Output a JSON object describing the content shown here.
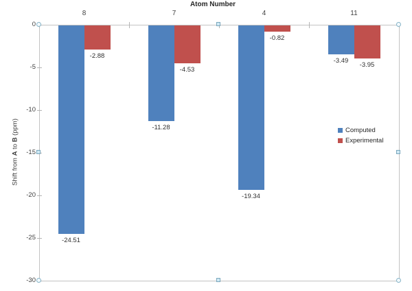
{
  "chart_data": {
    "type": "bar",
    "title": "Atom Number",
    "categories": [
      "8",
      "7",
      "4",
      "11"
    ],
    "series": [
      {
        "name": "Computed",
        "color": "#4F81BD",
        "values": [
          -24.51,
          -11.28,
          -19.34,
          -3.49
        ]
      },
      {
        "name": "Experimental",
        "color": "#C0504D",
        "values": [
          -2.88,
          -4.53,
          -0.82,
          -3.95
        ]
      }
    ],
    "data_labels": [
      [
        "-24.51",
        "-11.28",
        "-19.34",
        "-3.49"
      ],
      [
        "-2.88",
        "-4.53",
        "-0.82",
        "-3.95"
      ]
    ],
    "xlabel": "Atom Number",
    "ylabel": "Shift from A to B (ppm)",
    "ylabel_segments": [
      {
        "text": "Shift from ",
        "bold": false
      },
      {
        "text": "A",
        "bold": true
      },
      {
        "text": " to ",
        "bold": false
      },
      {
        "text": "B",
        "bold": true
      },
      {
        "text": " (ppm)",
        "bold": false
      }
    ],
    "ylim": [
      0,
      -30
    ],
    "ytick_step": -5,
    "ytick_labels": [
      "0",
      "-5",
      "-10",
      "-15",
      "-20",
      "-25",
      "-30"
    ],
    "grid": false,
    "legend_position": "middle-right",
    "category_axis_position": "top",
    "accent_blue": "#4F81BD",
    "accent_red": "#C0504D"
  },
  "selection": {
    "selected": true,
    "handle_shapes": {
      "corner": "circle",
      "edge": "square"
    }
  }
}
